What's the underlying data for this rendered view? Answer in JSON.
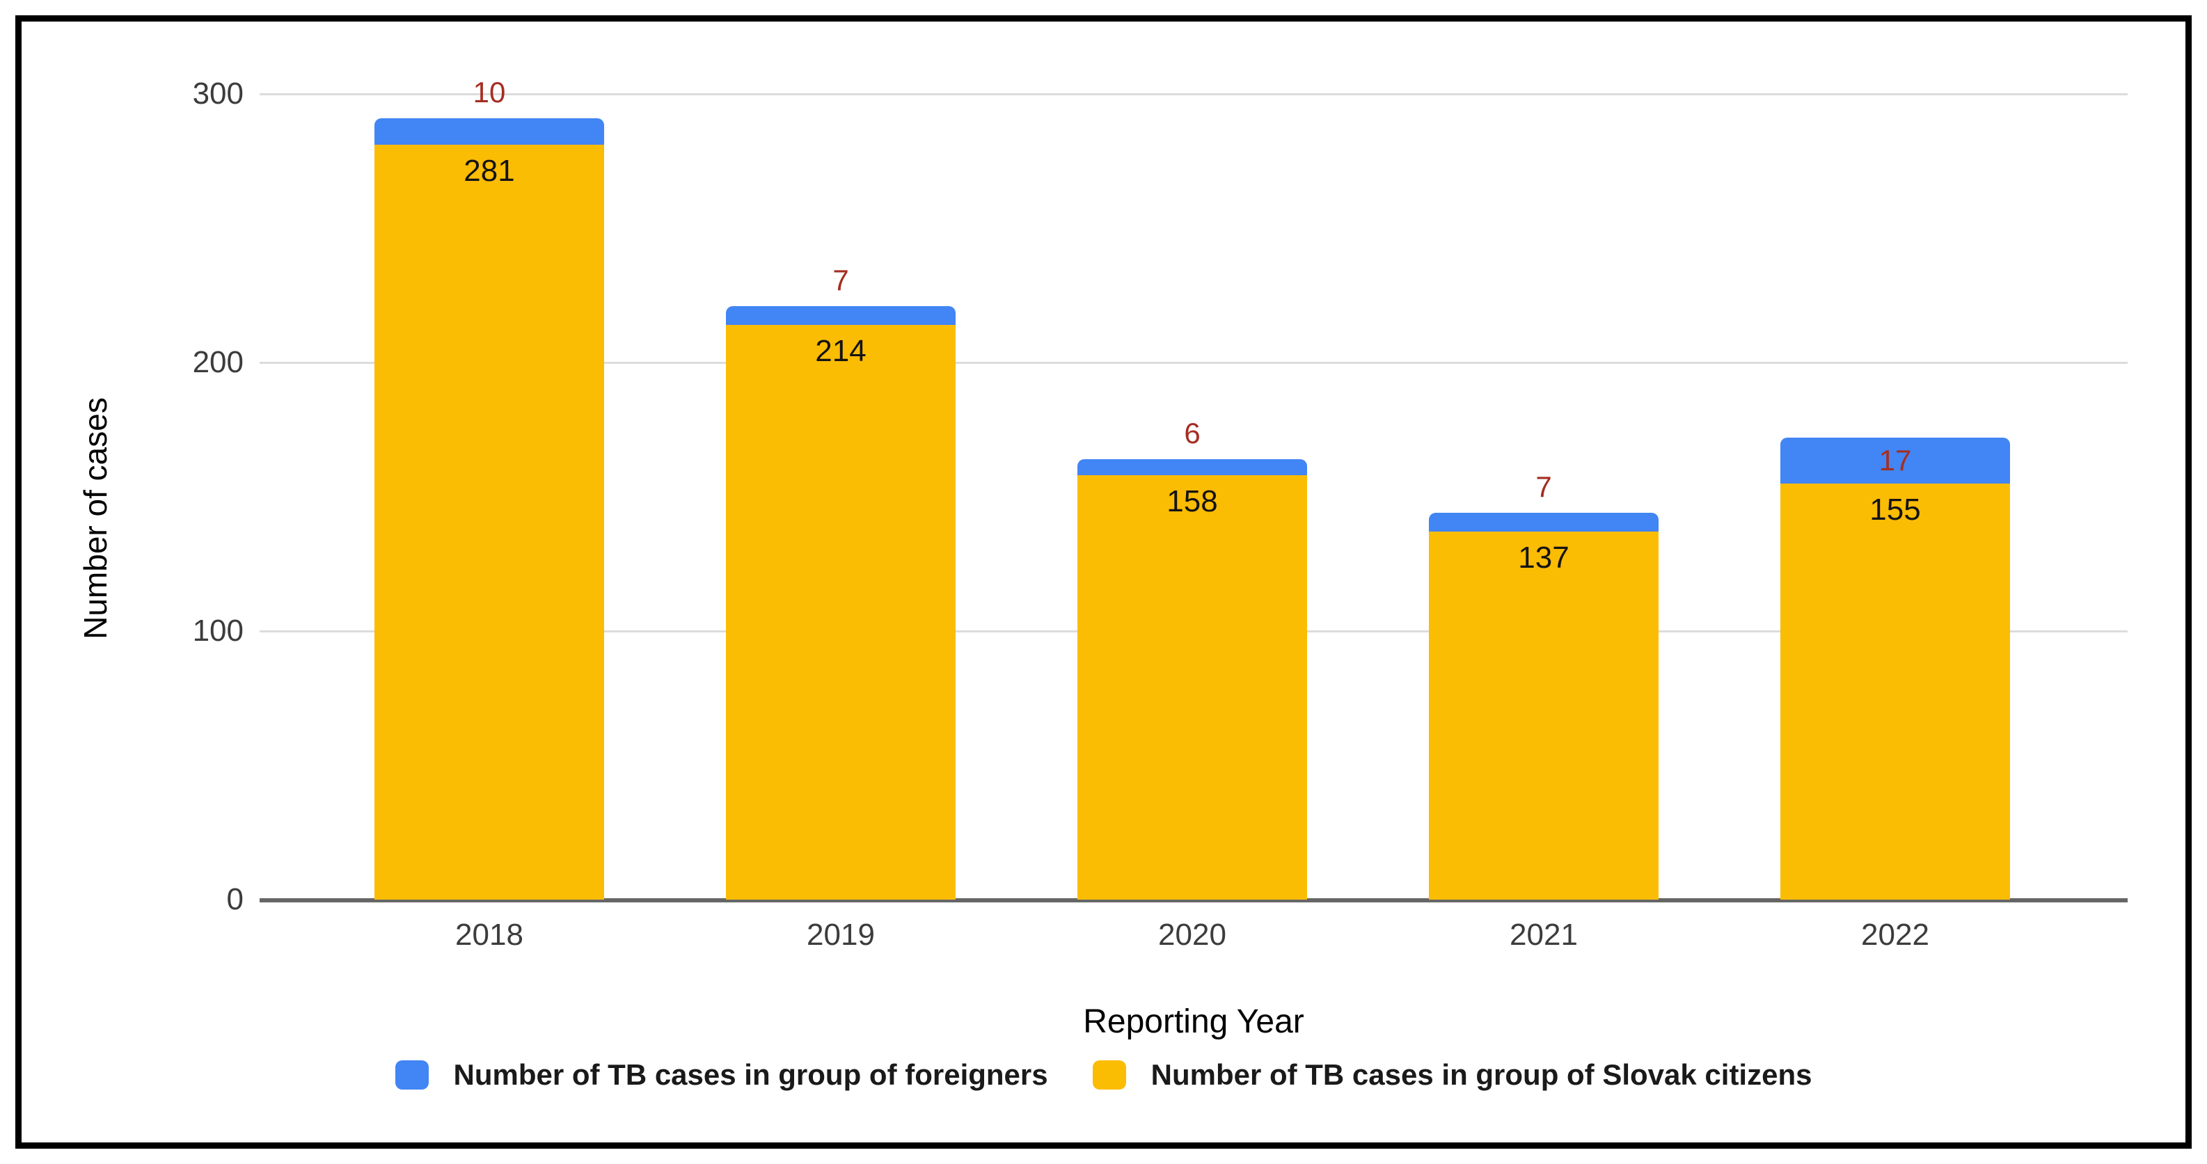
{
  "chart_data": {
    "type": "bar",
    "stacked": true,
    "title": "",
    "categories": [
      "2018",
      "2019",
      "2020",
      "2021",
      "2022"
    ],
    "series": [
      {
        "name": "Number of TB cases in group of foreigners",
        "color": "#4285F4",
        "values": [
          10,
          7,
          6,
          7,
          17
        ],
        "label_color": "#A52E22",
        "label_placement": "above-bar-or-inside-when-fits"
      },
      {
        "name": "Number of TB cases in group of Slovak citizens",
        "color": "#FBBC04",
        "values": [
          281,
          214,
          158,
          137,
          155
        ],
        "label_color": "#141414",
        "label_placement": "inside-top"
      }
    ],
    "xlabel": "Reporting Year",
    "ylabel": "Number of cases",
    "yticks": [
      0,
      100,
      200,
      300
    ],
    "ylim": [
      0,
      300
    ],
    "grid": true,
    "gridline_color": "#DCDCDC",
    "axis_line_color": "#666666",
    "tick_label_color": "#3C3C3C",
    "legend_position": "bottom",
    "frame_border_color": "#000000"
  }
}
